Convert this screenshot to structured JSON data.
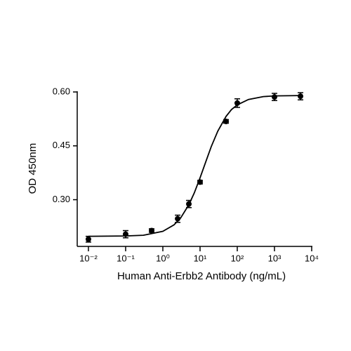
{
  "chart_data": {
    "type": "scatter",
    "xlabel": "Human Anti-Erbb2 Antibody (ng/mL)",
    "ylabel": "OD 450nm",
    "xscale": "log",
    "xlim": [
      0.005,
      10000
    ],
    "ylim": [
      0.17,
      0.6
    ],
    "xticks": [
      {
        "value": 0.01,
        "label": "10⁻²"
      },
      {
        "value": 0.1,
        "label": "10⁻¹"
      },
      {
        "value": 1,
        "label": "10⁰"
      },
      {
        "value": 10,
        "label": "10¹"
      },
      {
        "value": 100,
        "label": "10²"
      },
      {
        "value": 1000,
        "label": "10³"
      },
      {
        "value": 10000,
        "label": "10⁴"
      }
    ],
    "yticks": [
      {
        "value": 0.3,
        "label": "0.30"
      },
      {
        "value": 0.45,
        "label": "0.45"
      },
      {
        "value": 0.6,
        "label": "0.60"
      }
    ],
    "color": "#000000",
    "points": {
      "x": [
        0.01,
        0.1,
        0.5,
        2.5,
        5,
        10,
        50,
        100,
        1000,
        5000
      ],
      "y": [
        0.19,
        0.204,
        0.214,
        0.247,
        0.288,
        0.349,
        0.518,
        0.569,
        0.586,
        0.588
      ],
      "error": [
        0.008,
        0.01,
        0.005,
        0.01,
        0.01,
        0.005,
        0.005,
        0.012,
        0.01,
        0.01
      ]
    },
    "fit": {
      "x": [
        0.01,
        0.1,
        0.3,
        1,
        2,
        3,
        5,
        7,
        10,
        15,
        20,
        30,
        50,
        70,
        100,
        200,
        500,
        1000,
        5000
      ],
      "y": [
        0.198,
        0.199,
        0.201,
        0.212,
        0.23,
        0.249,
        0.286,
        0.319,
        0.361,
        0.412,
        0.448,
        0.491,
        0.532,
        0.551,
        0.564,
        0.579,
        0.587,
        0.589,
        0.59
      ]
    }
  }
}
